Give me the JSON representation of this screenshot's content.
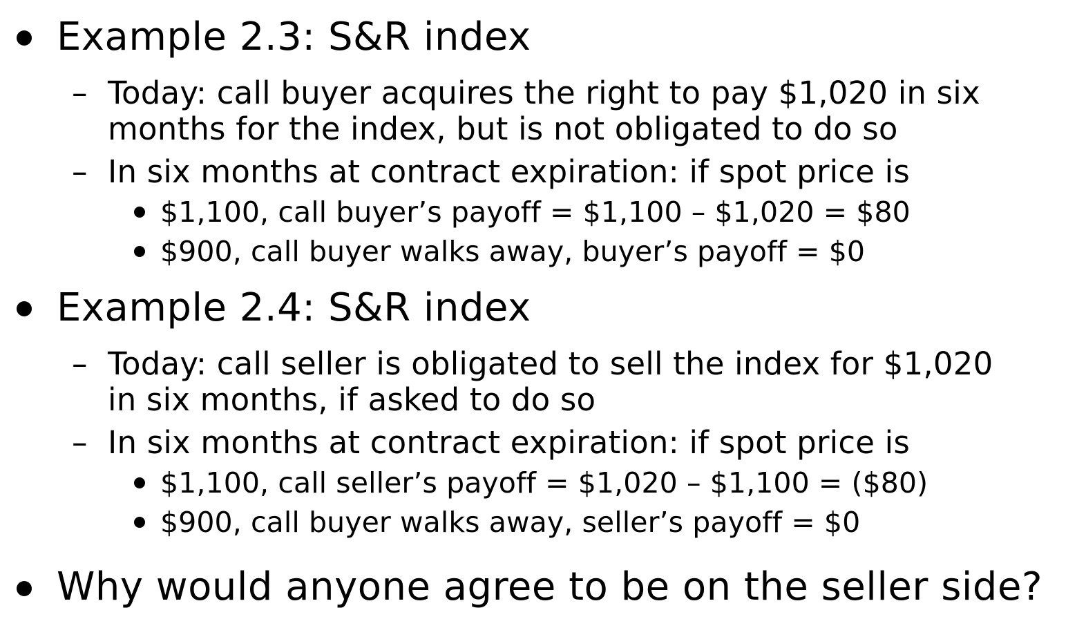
{
  "sections": [
    {
      "heading": "Example 2.3: S&R index",
      "points": [
        {
          "lines": [
            "Today: call buyer acquires the right to pay $1,020 in six",
            "months for the index, but is not obligated to do so"
          ]
        },
        {
          "lines": [
            "In six months at contract expiration: if spot price is"
          ],
          "subpoints": [
            "$1,100, call buyer’s payoff = $1,100 – $1,020 = $80",
            "$900, call buyer walks away, buyer’s payoff = $0"
          ]
        }
      ]
    },
    {
      "heading": "Example 2.4: S&R index",
      "points": [
        {
          "lines": [
            "Today: call seller is obligated to sell the index for $1,020",
            "in six months, if asked to do so"
          ]
        },
        {
          "lines": [
            "In six months at contract expiration: if spot price is"
          ],
          "subpoints": [
            "$1,100, call seller’s payoff = $1,020 – $1,100 = ($80)",
            "$900, call buyer walks away, seller’s payoff = $0"
          ]
        }
      ]
    },
    {
      "heading": "Why would anyone agree to be on the seller side?"
    }
  ],
  "dash_glyph": "–"
}
